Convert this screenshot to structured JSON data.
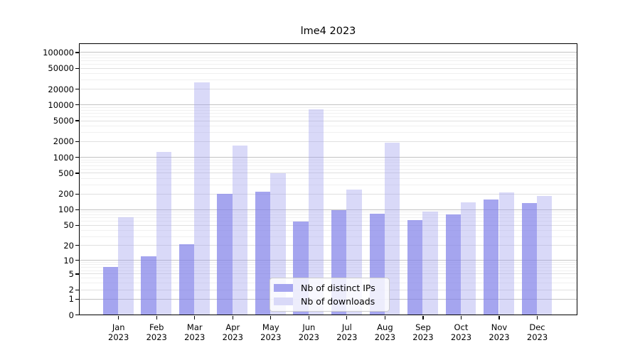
{
  "chart_data": {
    "type": "bar",
    "title": "lme4 2023",
    "categories": [
      "Jan",
      "Feb",
      "Mar",
      "Apr",
      "May",
      "Jun",
      "Jul",
      "Aug",
      "Sep",
      "Oct",
      "Nov",
      "Dec"
    ],
    "category_year": "2023",
    "series": [
      {
        "name": "Nb of distinct IPs",
        "color": "#a5a5ef",
        "values": [
          7,
          12,
          21,
          200,
          215,
          58,
          95,
          83,
          62,
          80,
          155,
          133
        ]
      },
      {
        "name": "Nb of downloads",
        "color": "#d9d9f8",
        "values": [
          70,
          1270,
          26400,
          1650,
          490,
          8050,
          240,
          1890,
          90,
          135,
          212,
          178
        ]
      }
    ],
    "yscale": "log1p",
    "ylim": [
      0,
      145000
    ],
    "yticks": [
      0,
      1,
      2,
      5,
      10,
      20,
      50,
      100,
      200,
      500,
      1000,
      2000,
      5000,
      10000,
      20000,
      50000,
      100000
    ],
    "grid": "horizontal",
    "legend_position": "lower center"
  }
}
